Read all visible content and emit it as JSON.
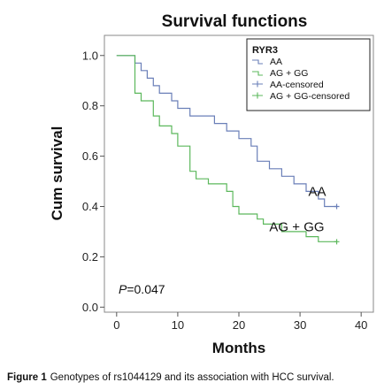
{
  "caption": {
    "label": "Figure 1",
    "text": "Genotypes of rs1044129 and its association with HCC survival."
  },
  "chart_data": {
    "type": "line",
    "title": "Survival functions",
    "xlabel": "Months",
    "ylabel": "Cum survival",
    "xlim": [
      -2,
      42
    ],
    "ylim": [
      -0.02,
      1.08
    ],
    "x_ticks": [
      "0",
      "10",
      "20",
      "30",
      "40"
    ],
    "y_ticks": [
      "0.0",
      "0.2",
      "0.4",
      "0.6",
      "0.8",
      "1.0"
    ],
    "grid": false,
    "legend_position": "top-right",
    "legend": {
      "title": "RYR3",
      "entries": [
        "AA",
        "AG + GG",
        "AA-censored",
        "AG + GG-censored"
      ]
    },
    "annotation_text": "=0.047",
    "annotation_italic": "P",
    "series": [
      {
        "name": "AA",
        "label_text": "AA",
        "color": "#6a7fb8",
        "steps": [
          [
            0,
            1.0
          ],
          [
            3,
            1.0
          ],
          [
            3,
            0.97
          ],
          [
            4,
            0.97
          ],
          [
            4,
            0.94
          ],
          [
            5,
            0.94
          ],
          [
            5,
            0.91
          ],
          [
            6,
            0.91
          ],
          [
            6,
            0.88
          ],
          [
            7,
            0.88
          ],
          [
            7,
            0.85
          ],
          [
            9,
            0.85
          ],
          [
            9,
            0.82
          ],
          [
            10,
            0.82
          ],
          [
            10,
            0.79
          ],
          [
            12,
            0.79
          ],
          [
            12,
            0.76
          ],
          [
            16,
            0.76
          ],
          [
            16,
            0.73
          ],
          [
            18,
            0.73
          ],
          [
            18,
            0.7
          ],
          [
            20,
            0.7
          ],
          [
            20,
            0.67
          ],
          [
            22,
            0.67
          ],
          [
            22,
            0.64
          ],
          [
            23,
            0.64
          ],
          [
            23,
            0.58
          ],
          [
            25,
            0.58
          ],
          [
            25,
            0.55
          ],
          [
            27,
            0.55
          ],
          [
            27,
            0.52
          ],
          [
            29,
            0.52
          ],
          [
            29,
            0.49
          ],
          [
            31,
            0.49
          ],
          [
            31,
            0.46
          ],
          [
            33,
            0.46
          ],
          [
            33,
            0.43
          ],
          [
            34,
            0.43
          ],
          [
            34,
            0.4
          ],
          [
            36,
            0.4
          ]
        ],
        "censored": [
          [
            36,
            0.4
          ]
        ]
      },
      {
        "name": "AG + GG",
        "label_text": "AG + GG",
        "color": "#5cb85c",
        "steps": [
          [
            0,
            1.0
          ],
          [
            3,
            1.0
          ],
          [
            3,
            0.85
          ],
          [
            4,
            0.85
          ],
          [
            4,
            0.82
          ],
          [
            6,
            0.82
          ],
          [
            6,
            0.76
          ],
          [
            7,
            0.76
          ],
          [
            7,
            0.72
          ],
          [
            9,
            0.72
          ],
          [
            9,
            0.69
          ],
          [
            10,
            0.69
          ],
          [
            10,
            0.64
          ],
          [
            12,
            0.64
          ],
          [
            12,
            0.54
          ],
          [
            13,
            0.54
          ],
          [
            13,
            0.51
          ],
          [
            15,
            0.51
          ],
          [
            15,
            0.49
          ],
          [
            18,
            0.49
          ],
          [
            18,
            0.46
          ],
          [
            19,
            0.46
          ],
          [
            19,
            0.4
          ],
          [
            20,
            0.4
          ],
          [
            20,
            0.37
          ],
          [
            23,
            0.37
          ],
          [
            23,
            0.35
          ],
          [
            24,
            0.35
          ],
          [
            24,
            0.33
          ],
          [
            27,
            0.33
          ],
          [
            27,
            0.3
          ],
          [
            31,
            0.3
          ],
          [
            31,
            0.28
          ],
          [
            33,
            0.28
          ],
          [
            33,
            0.26
          ],
          [
            36,
            0.26
          ]
        ],
        "censored": [
          [
            36,
            0.26
          ]
        ]
      }
    ]
  }
}
